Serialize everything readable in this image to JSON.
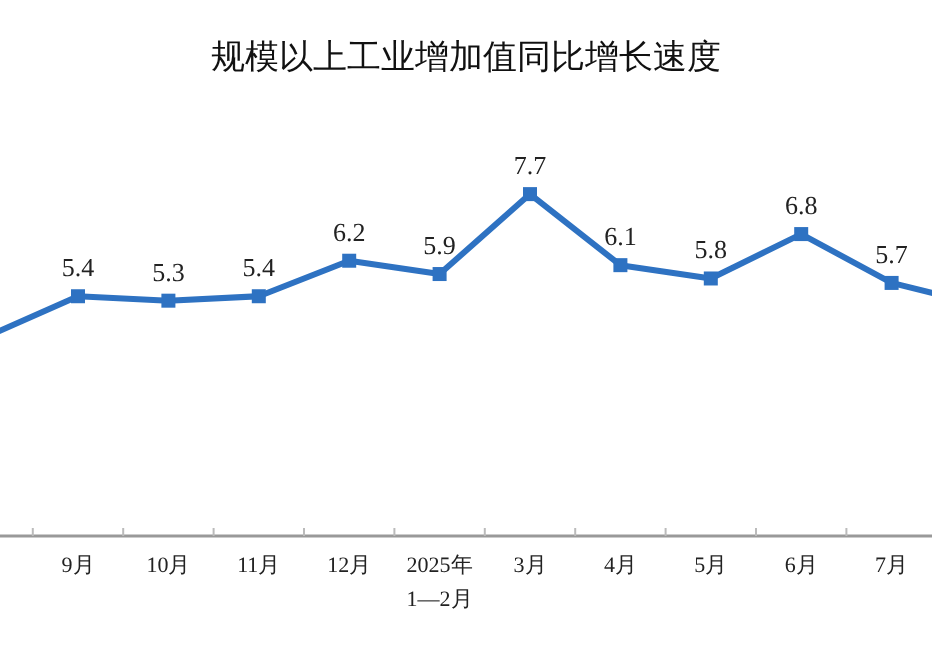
{
  "chart_data": {
    "type": "line",
    "title": "规模以上工业增加值同比增长速度",
    "categories": [
      null,
      "9月",
      "10月",
      "11月",
      "12月",
      "2025年\n1—2月",
      "3月",
      "4月",
      "5月",
      "6月",
      "7月",
      null
    ],
    "series": [
      {
        "color": "#2e72c2",
        "values": [
          4.5,
          5.4,
          5.3,
          5.4,
          6.2,
          5.9,
          7.7,
          6.1,
          5.8,
          6.8,
          5.7,
          5.2
        ],
        "value_labels": [
          null,
          "5.4",
          "5.3",
          "5.4",
          "6.2",
          "5.9",
          "7.7",
          "6.1",
          "5.8",
          "6.8",
          "5.7",
          null
        ]
      }
    ],
    "tick_labels": "x",
    "marker": "square",
    "line_style": "solid"
  }
}
